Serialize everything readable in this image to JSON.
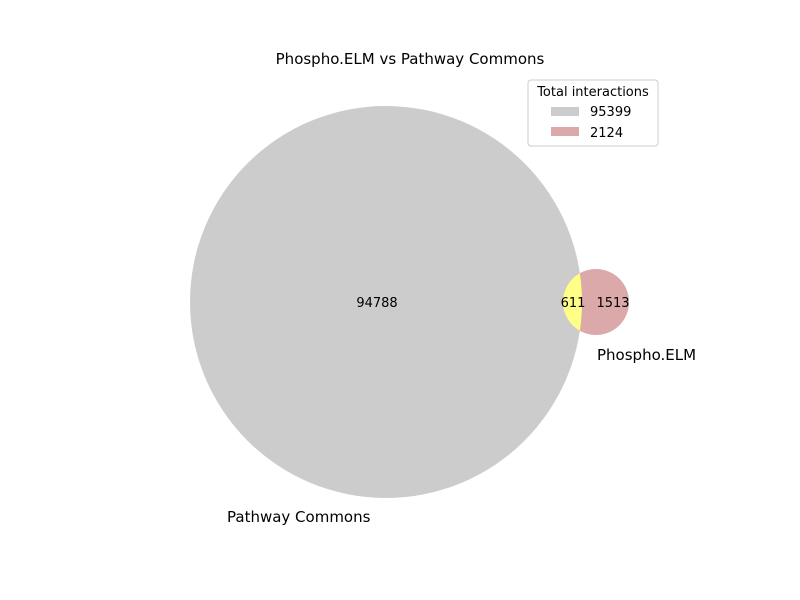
{
  "chart_data": {
    "type": "venn",
    "title": "Phospho.ELM vs Pathway Commons",
    "sets": [
      {
        "name": "Pathway Commons",
        "total": 95399,
        "only": 94788,
        "color": "#cccccc"
      },
      {
        "name": "Phospho.ELM",
        "total": 2124,
        "only": 1513,
        "color": "#dba9a9"
      }
    ],
    "intersection": {
      "value": 611,
      "color": "#ffff88"
    },
    "legend": {
      "title": "Total interactions",
      "placement": "top-right",
      "entries": [
        {
          "label": "95399",
          "color": "#cccccc"
        },
        {
          "label": "2124",
          "color": "#dba9a9"
        }
      ]
    }
  }
}
